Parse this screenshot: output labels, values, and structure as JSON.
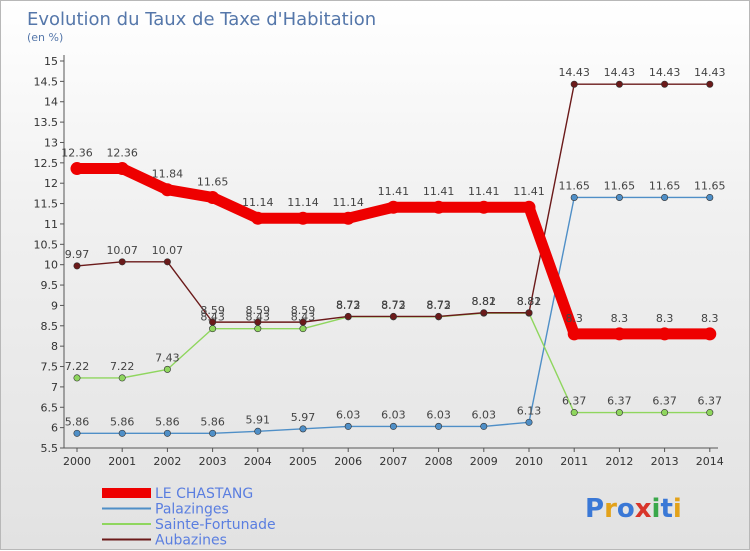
{
  "chart_data": {
    "type": "line",
    "title": "Evolution du Taux de Taxe d'Habitation",
    "ylabel": "(en %)",
    "ylim": [
      5.5,
      15
    ],
    "ytick_step": 0.5,
    "grid": false,
    "legend_position": "bottom-left",
    "categories": [
      "2000",
      "2001",
      "2002",
      "2003",
      "2004",
      "2005",
      "2006",
      "2007",
      "2008",
      "2009",
      "2010",
      "2011",
      "2012",
      "2013",
      "2014"
    ],
    "series": [
      {
        "name": "LE CHASTANG",
        "color": "#ee0000",
        "emphasis": true,
        "values": [
          12.36,
          12.36,
          11.84,
          11.65,
          11.14,
          11.14,
          11.14,
          11.41,
          11.41,
          11.41,
          11.41,
          8.3,
          8.3,
          8.3,
          8.3
        ],
        "labels": [
          "12.36",
          "12.36",
          "11.84",
          "11.65",
          "11.14",
          "11.14",
          "11.14",
          "11.41",
          "11.41",
          "11.41",
          "11.41",
          "8.3",
          "8.3",
          "8.3",
          "8.3"
        ]
      },
      {
        "name": "Palazinges",
        "color": "#4f8fc7",
        "values": [
          5.86,
          5.86,
          5.86,
          5.86,
          5.91,
          5.97,
          6.03,
          6.03,
          6.03,
          6.03,
          6.13,
          11.65,
          11.65,
          11.65,
          11.65
        ],
        "labels": [
          "5.86",
          "5.86",
          "5.86",
          "5.86",
          "5.91",
          "5.97",
          "6.03",
          "6.03",
          "6.03",
          "6.03",
          "6.13",
          "11.65",
          "11.65",
          "11.65",
          "11.65"
        ]
      },
      {
        "name": "Sainte-Fortunade",
        "color": "#8fd65e",
        "values": [
          7.22,
          7.22,
          7.43,
          8.43,
          8.43,
          8.43,
          8.72,
          8.72,
          8.72,
          8.81,
          8.81,
          6.37,
          6.37,
          6.37,
          6.37
        ],
        "labels": [
          "7.22",
          "7.22",
          "7.43",
          "8.43",
          "8.43",
          "8.43",
          "8.72",
          "8.72",
          "8.72",
          "8.81",
          "8.81",
          "6.37",
          "6.37",
          "6.37",
          "6.37"
        ]
      },
      {
        "name": "Aubazines",
        "color": "#6b1a1a",
        "values": [
          9.97,
          10.07,
          10.07,
          8.59,
          8.59,
          8.59,
          8.73,
          8.73,
          8.73,
          8.82,
          8.82,
          14.43,
          14.43,
          14.43,
          14.43
        ],
        "labels": [
          "9.97",
          "10.07",
          "10.07",
          "8.59",
          "8.59",
          "8.59",
          "8.73",
          "8.73",
          "8.73",
          "8.82",
          "8.82",
          "14.43",
          "14.43",
          "14.43",
          "14.43"
        ]
      }
    ]
  },
  "branding": {
    "logo_text": "Proxiti"
  }
}
